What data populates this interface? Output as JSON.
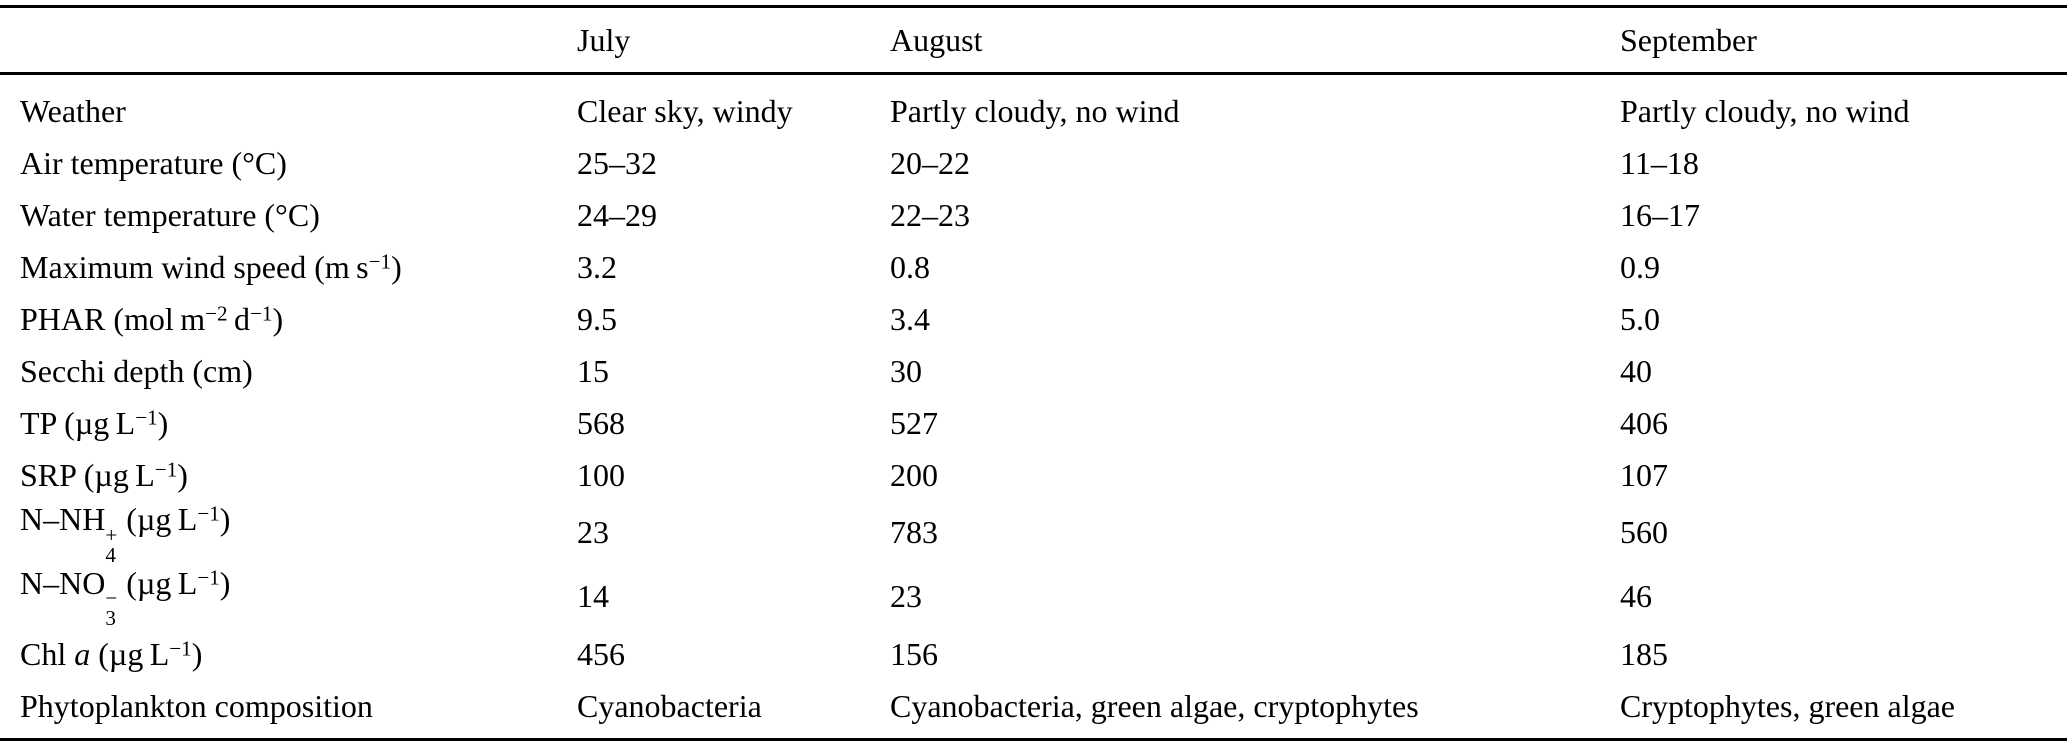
{
  "table": {
    "columns": [
      "",
      "July",
      "August",
      "September"
    ],
    "rows": [
      {
        "label": [
          {
            "t": "text",
            "v": "Weather"
          }
        ],
        "values": [
          "Clear sky, windy",
          "Partly cloudy, no wind",
          "Partly cloudy, no wind"
        ]
      },
      {
        "label": [
          {
            "t": "text",
            "v": "Air temperature (°C)"
          }
        ],
        "values": [
          "25–32",
          "20–22",
          "11–18"
        ]
      },
      {
        "label": [
          {
            "t": "text",
            "v": "Water temperature (°C)"
          }
        ],
        "values": [
          "24–29",
          "22–23",
          "16–17"
        ]
      },
      {
        "label": [
          {
            "t": "text",
            "v": "Maximum wind speed (m s"
          },
          {
            "t": "sup",
            "v": "−1"
          },
          {
            "t": "text",
            "v": ")"
          }
        ],
        "values": [
          "3.2",
          "0.8",
          "0.9"
        ]
      },
      {
        "label": [
          {
            "t": "text",
            "v": "PHAR (mol m"
          },
          {
            "t": "sup",
            "v": "−2"
          },
          {
            "t": "text",
            "v": " d"
          },
          {
            "t": "sup",
            "v": "−1"
          },
          {
            "t": "text",
            "v": ")"
          }
        ],
        "values": [
          "9.5",
          "3.4",
          "5.0"
        ]
      },
      {
        "label": [
          {
            "t": "text",
            "v": "Secchi depth (cm)"
          }
        ],
        "values": [
          "15",
          "30",
          "40"
        ]
      },
      {
        "label": [
          {
            "t": "text",
            "v": "TP (µg L"
          },
          {
            "t": "sup",
            "v": "−1"
          },
          {
            "t": "text",
            "v": ")"
          }
        ],
        "values": [
          "568",
          "527",
          "406"
        ]
      },
      {
        "label": [
          {
            "t": "text",
            "v": "SRP (µg L"
          },
          {
            "t": "sup",
            "v": "−1"
          },
          {
            "t": "text",
            "v": ")"
          }
        ],
        "values": [
          "100",
          "200",
          "107"
        ]
      },
      {
        "label": [
          {
            "t": "text",
            "v": "N–NH"
          },
          {
            "t": "stack",
            "sup": "+",
            "sub": "4"
          },
          {
            "t": "text",
            "v": " (µg L"
          },
          {
            "t": "sup",
            "v": "−1"
          },
          {
            "t": "text",
            "v": ")"
          }
        ],
        "values": [
          "23",
          "783",
          "560"
        ]
      },
      {
        "label": [
          {
            "t": "text",
            "v": "N–NO"
          },
          {
            "t": "stack",
            "sup": "−",
            "sub": "3"
          },
          {
            "t": "text",
            "v": " (µg L"
          },
          {
            "t": "sup",
            "v": "−1"
          },
          {
            "t": "text",
            "v": ")"
          }
        ],
        "values": [
          "14",
          "23",
          "46"
        ]
      },
      {
        "label": [
          {
            "t": "text",
            "v": "Chl "
          },
          {
            "t": "italic",
            "v": "a"
          },
          {
            "t": "text",
            "v": " (µg L"
          },
          {
            "t": "sup",
            "v": "−1"
          },
          {
            "t": "text",
            "v": ")"
          }
        ],
        "values": [
          "456",
          "156",
          "185"
        ]
      },
      {
        "label": [
          {
            "t": "text",
            "v": "Phytoplankton composition"
          }
        ],
        "values": [
          "Cyanobacteria",
          "Cyanobacteria, green algae, cryptophytes",
          "Cryptophytes, green algae"
        ]
      }
    ]
  },
  "colors": {
    "text": "#000000",
    "background": "#ffffff",
    "rule": "#000000"
  }
}
